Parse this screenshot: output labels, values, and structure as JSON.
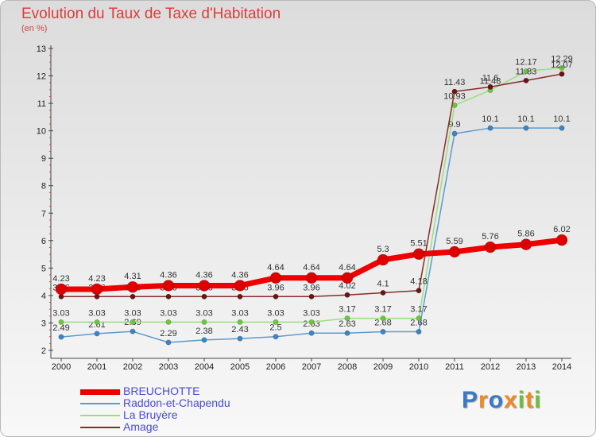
{
  "colors": {
    "title": "#e03a3a",
    "axis_labels": "#222222",
    "legend_text": "#4a4ad8"
  },
  "chart_data": {
    "type": "line",
    "title": "Evolution du Taux de Taxe d'Habitation",
    "subtitle": "(en %)",
    "x": [
      "2000",
      "2001",
      "2002",
      "2003",
      "2004",
      "2005",
      "2006",
      "2007",
      "2008",
      "2009",
      "2010",
      "2011",
      "2012",
      "2013",
      "2014"
    ],
    "ylim": [
      2,
      13
    ],
    "yticks": [
      "2",
      "3",
      "4",
      "5",
      "6",
      "7",
      "8",
      "9",
      "10",
      "11",
      "12",
      "13"
    ],
    "grid": false,
    "legend_position": "bottom-left",
    "series": [
      {
        "name": "Raddon-et-Chapendu",
        "color": "#5b9bd0",
        "point_color": "#3d84c4",
        "values": [
          2.49,
          2.61,
          2.69,
          2.29,
          2.38,
          2.43,
          2.5,
          2.63,
          2.63,
          2.68,
          2.68,
          9.9,
          10.1,
          10.1,
          10.1
        ],
        "labels": [
          "2.49",
          "2.61",
          "2.69",
          "2.29",
          "2.38",
          "2.43",
          "2.5",
          "2.63",
          "2.63",
          "2.68",
          "2.68",
          "9.9",
          "10.1",
          "10.1",
          "10.1"
        ]
      },
      {
        "name": "La Bruyère",
        "color": "#98e07c",
        "point_color": "#6cc63f",
        "values": [
          3.03,
          3.03,
          3.03,
          3.03,
          3.03,
          3.03,
          3.03,
          3.03,
          3.17,
          3.17,
          3.17,
          10.93,
          11.48,
          12.17,
          12.29
        ],
        "labels": [
          "3.03",
          "3.03",
          "3.03",
          "3.03",
          "3.03",
          "3.03",
          "3.03",
          "3.03",
          "3.17",
          "3.17",
          "3.17",
          "10.93",
          "11.48",
          "12.17",
          "12.29"
        ]
      },
      {
        "name": "Amage",
        "color": "#8a2b2b",
        "point_color": "#6a1414",
        "values": [
          3.96,
          3.96,
          3.96,
          3.96,
          3.96,
          3.96,
          3.96,
          3.96,
          4.02,
          4.1,
          4.18,
          11.43,
          11.6,
          11.83,
          12.07
        ],
        "labels": [
          "3.96",
          "3.96",
          "3.96",
          "3.96",
          "3.96",
          "3.96",
          "3.96",
          "3.96",
          "4.02",
          "4.1",
          "4.18",
          "11.43",
          "11.6",
          "11.83",
          "12.07"
        ]
      },
      {
        "name": "BREUCHOTTE",
        "color": "#ee0000",
        "point_color": "#dd0000",
        "values": [
          4.23,
          4.23,
          4.31,
          4.36,
          4.36,
          4.36,
          4.64,
          4.64,
          4.64,
          5.3,
          5.51,
          5.59,
          5.76,
          5.86,
          6.02
        ],
        "labels": [
          "4.23",
          "4.23",
          "4.31",
          "4.36",
          "4.36",
          "4.36",
          "4.64",
          "4.64",
          "4.64",
          "5.3",
          "5.51",
          "5.59",
          "5.76",
          "5.86",
          "6.02"
        ]
      }
    ],
    "legend_order": [
      "BREUCHOTTE",
      "Raddon-et-Chapendu",
      "La Bruyère",
      "Amage"
    ]
  },
  "brand": {
    "letters": [
      "P",
      "r",
      "o",
      "x",
      "i",
      "t",
      "i"
    ],
    "colors": [
      "#3a78c8",
      "#f08a1c",
      "#3a78c8",
      "#f08a1c",
      "#6cbf3a",
      "#f08a1c",
      "#6cbf3a"
    ]
  }
}
